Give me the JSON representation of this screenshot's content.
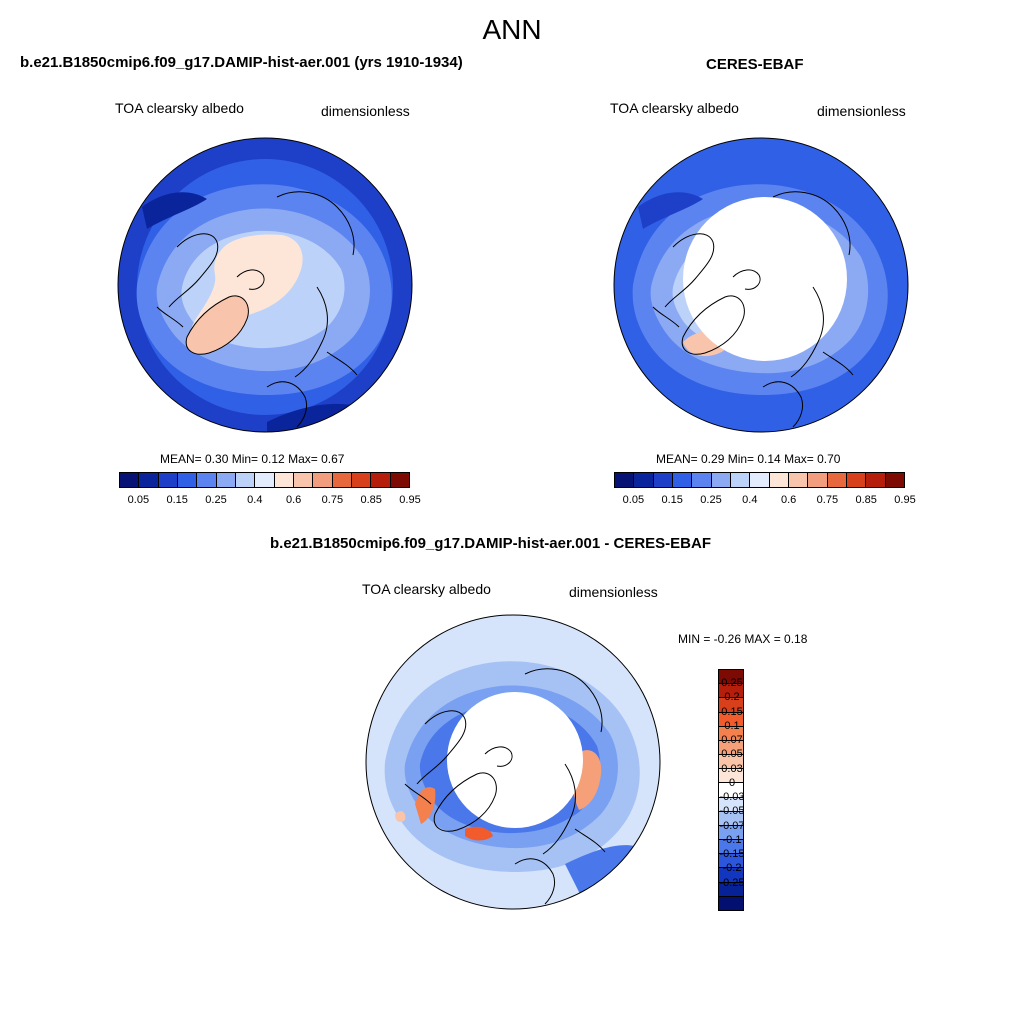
{
  "figure": {
    "season": "ANN"
  },
  "panels": [
    {
      "title": "b.e21.B1850cmip6.f09_g17.DAMIP-hist-aer.001 (yrs 1910-1934)",
      "variable": "TOA clearsky albedo",
      "units": "dimensionless",
      "stats": "MEAN=   0.30  Min=    0.12  Max=    0.67",
      "stats_values": {
        "mean": 0.3,
        "min": 0.12,
        "max": 0.67
      },
      "colorbar": {
        "colors": [
          "#061274",
          "#0a249c",
          "#1e40c8",
          "#3060e6",
          "#5c84f0",
          "#8caaf4",
          "#bcd2f8",
          "#e2ecfc",
          "#fde6d8",
          "#f8c4ac",
          "#f19d7e",
          "#e8683e",
          "#d8401c",
          "#b41e0a",
          "#7e0a04"
        ],
        "tick_labels": [
          "0.05",
          "0.15",
          "0.25",
          "0.4",
          "0.6",
          "0.75",
          "0.85",
          "0.95"
        ]
      }
    },
    {
      "title": "CERES-EBAF",
      "variable": "TOA clearsky albedo",
      "units": "dimensionless",
      "stats": "MEAN=   0.29  Min=    0.14  Max=    0.70",
      "stats_values": {
        "mean": 0.29,
        "min": 0.14,
        "max": 0.7
      },
      "colorbar": {
        "colors": [
          "#061274",
          "#0a249c",
          "#1e40c8",
          "#3060e6",
          "#5c84f0",
          "#8caaf4",
          "#bcd2f8",
          "#e2ecfc",
          "#fde6d8",
          "#f8c4ac",
          "#f19d7e",
          "#e8683e",
          "#d8401c",
          "#b41e0a",
          "#7e0a04"
        ],
        "tick_labels": [
          "0.05",
          "0.15",
          "0.25",
          "0.4",
          "0.6",
          "0.75",
          "0.85",
          "0.95"
        ]
      }
    },
    {
      "title": "b.e21.B1850cmip6.f09_g17.DAMIP-hist-aer.001 - CERES-EBAF",
      "variable": "TOA clearsky albedo",
      "units": "dimensionless",
      "stats": "MIN =  -0.26 MAX =   0.18",
      "stats_values": {
        "min": -0.26,
        "max": 0.18
      },
      "colorbar": {
        "colors": [
          "#7e0a04",
          "#b41e0a",
          "#d8401c",
          "#f25c2c",
          "#f4804e",
          "#f6a07a",
          "#f9c4a8",
          "#fde6d8",
          "#ffffff",
          "#d6e4fb",
          "#a6c2f5",
          "#7aa0f1",
          "#4a78ea",
          "#2c56dc",
          "#1236c0",
          "#062296",
          "#041070"
        ],
        "tick_labels": [
          "0.25",
          "0.2",
          "0.15",
          "0.1",
          "0.07",
          "0.05",
          "0.03",
          "0",
          "-0.03",
          "-0.05",
          "-0.07",
          "-0.1",
          "-0.15",
          "-0.2",
          "-0.25"
        ]
      }
    }
  ]
}
